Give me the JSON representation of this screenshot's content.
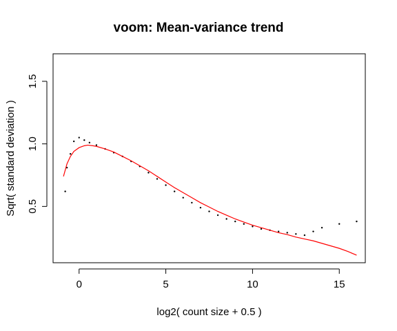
{
  "chart_data": {
    "type": "scatter",
    "title": "voom: Mean-variance trend",
    "xlabel": "log2( count size + 0.5 )",
    "ylabel": "Sqrt( standard deviation )",
    "xlim": [
      -1.5,
      16.5
    ],
    "ylim": [
      0.05,
      1.72
    ],
    "x_ticks": [
      0,
      5,
      10,
      15
    ],
    "x_tick_labels": [
      "0",
      "5",
      "10",
      "15"
    ],
    "y_ticks": [
      0.5,
      1.0,
      1.5
    ],
    "y_tick_labels": [
      "0.5",
      "1.0",
      "1.5"
    ],
    "grid": false,
    "legend": "none",
    "point_color": "#000000",
    "trend_color": "#ff0000",
    "series": [
      {
        "type": "scatter",
        "x": [
          -0.8,
          -0.7,
          -0.5,
          -0.3,
          0.0,
          0.3,
          0.6,
          1.0,
          1.5,
          2.0,
          2.5,
          3.0,
          3.5,
          4.0,
          4.5,
          5.0,
          5.5,
          6.0,
          6.5,
          7.0,
          7.5,
          8.0,
          8.5,
          9.0,
          9.5,
          10.0,
          10.5,
          11.0,
          11.5,
          12.0,
          12.5,
          13.0,
          13.5,
          14.0,
          15.0,
          16.0
        ],
        "y": [
          0.62,
          0.81,
          0.92,
          1.02,
          1.05,
          1.03,
          1.01,
          0.99,
          0.96,
          0.93,
          0.9,
          0.86,
          0.82,
          0.77,
          0.72,
          0.67,
          0.62,
          0.57,
          0.53,
          0.49,
          0.46,
          0.43,
          0.4,
          0.38,
          0.36,
          0.34,
          0.32,
          0.31,
          0.3,
          0.29,
          0.28,
          0.27,
          0.3,
          0.33,
          0.36,
          0.38
        ]
      },
      {
        "type": "line",
        "x": [
          -0.9,
          -0.7,
          -0.5,
          -0.3,
          0.0,
          0.3,
          0.5,
          0.8,
          1.0,
          1.5,
          2.0,
          2.5,
          3.0,
          3.5,
          4.0,
          4.5,
          5.0,
          5.5,
          6.0,
          6.5,
          7.0,
          7.5,
          8.0,
          8.5,
          9.0,
          9.5,
          10.0,
          10.5,
          11.0,
          11.5,
          12.0,
          12.5,
          13.0,
          13.5,
          14.0,
          14.5,
          15.0,
          15.5,
          16.0
        ],
        "y": [
          0.74,
          0.84,
          0.9,
          0.94,
          0.97,
          0.985,
          0.99,
          0.985,
          0.98,
          0.96,
          0.935,
          0.9,
          0.865,
          0.825,
          0.785,
          0.74,
          0.695,
          0.65,
          0.61,
          0.57,
          0.53,
          0.495,
          0.46,
          0.43,
          0.4,
          0.375,
          0.35,
          0.33,
          0.31,
          0.29,
          0.275,
          0.255,
          0.24,
          0.225,
          0.205,
          0.185,
          0.165,
          0.14,
          0.11
        ]
      }
    ]
  }
}
